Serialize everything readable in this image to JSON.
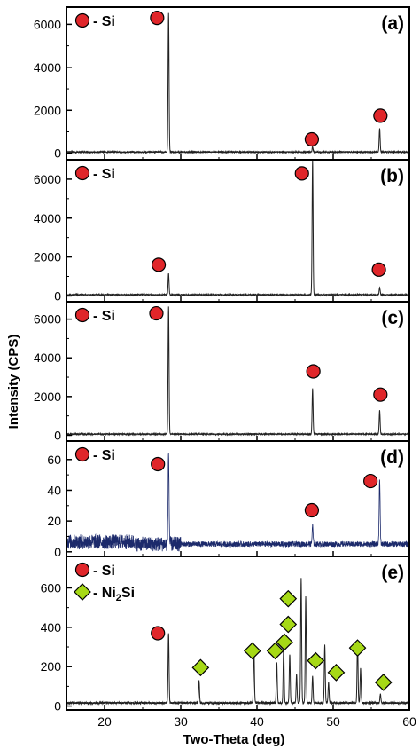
{
  "figure": {
    "ylabel": "Intensity (CPS)",
    "xlabel": "Two-Theta (deg)",
    "x_ticks": [
      "20",
      "30",
      "40",
      "50",
      "60"
    ],
    "xlim": [
      15,
      60
    ]
  },
  "chart_data": [
    {
      "type": "line",
      "panel_label": "(a)",
      "ylim": [
        -300,
        6800
      ],
      "y_ticks": [
        0,
        2000,
        4000,
        6000
      ],
      "legend": [
        {
          "marker": "circle",
          "color": "#e0262a",
          "label": "- Si"
        }
      ],
      "baseline": 60,
      "peaks": [
        {
          "x": 28.4,
          "y": 6550
        },
        {
          "x": 47.3,
          "y": 300
        },
        {
          "x": 56.1,
          "y": 1150
        }
      ],
      "markers": [
        {
          "type": "circle",
          "x": 26.9,
          "y": 6300
        },
        {
          "type": "circle",
          "x": 47.2,
          "y": 650
        },
        {
          "type": "circle",
          "x": 56.2,
          "y": 1750
        }
      ]
    },
    {
      "type": "line",
      "panel_label": "(b)",
      "ylim": [
        -300,
        7000
      ],
      "y_ticks": [
        0,
        2000,
        4000,
        6000
      ],
      "legend": [
        {
          "marker": "circle",
          "color": "#e0262a",
          "label": "- Si"
        }
      ],
      "baseline": 60,
      "peaks": [
        {
          "x": 28.4,
          "y": 1150
        },
        {
          "x": 47.3,
          "y": 7000
        },
        {
          "x": 56.1,
          "y": 450
        }
      ],
      "markers": [
        {
          "type": "circle",
          "x": 27.1,
          "y": 1600
        },
        {
          "type": "circle",
          "x": 45.9,
          "y": 6300
        },
        {
          "type": "circle",
          "x": 56.0,
          "y": 1350
        }
      ]
    },
    {
      "type": "line",
      "panel_label": "(c)",
      "ylim": [
        -300,
        6900
      ],
      "y_ticks": [
        0,
        2000,
        4000,
        6000
      ],
      "legend": [
        {
          "marker": "circle",
          "color": "#e0262a",
          "label": "- Si"
        }
      ],
      "baseline": 60,
      "peaks": [
        {
          "x": 28.4,
          "y": 6650
        },
        {
          "x": 47.3,
          "y": 2400
        },
        {
          "x": 56.1,
          "y": 1300
        }
      ],
      "markers": [
        {
          "type": "circle",
          "x": 26.8,
          "y": 6300
        },
        {
          "type": "circle",
          "x": 47.4,
          "y": 3300
        },
        {
          "type": "circle",
          "x": 56.2,
          "y": 2100
        }
      ]
    },
    {
      "type": "line",
      "panel_label": "(d)",
      "ylim": [
        -3,
        72
      ],
      "y_ticks": [
        0,
        20,
        40,
        60
      ],
      "legend": [
        {
          "marker": "circle",
          "color": "#e0262a",
          "label": "- Si"
        }
      ],
      "baseline": 5,
      "peaks": [
        {
          "x": 28.4,
          "y": 64
        },
        {
          "x": 47.3,
          "y": 17
        },
        {
          "x": 56.1,
          "y": 48
        }
      ],
      "markers": [
        {
          "type": "circle",
          "x": 27.0,
          "y": 57
        },
        {
          "type": "circle",
          "x": 47.2,
          "y": 27
        },
        {
          "type": "circle",
          "x": 54.9,
          "y": 46
        }
      ]
    },
    {
      "type": "line",
      "panel_label": "(e)",
      "ylim": [
        -20,
        760
      ],
      "y_ticks": [
        0,
        200,
        400,
        600
      ],
      "legend": [
        {
          "marker": "circle",
          "color": "#e0262a",
          "label": "- Si"
        },
        {
          "marker": "diamond",
          "color": "#a6d916",
          "label": "- Ni",
          "sub": "2",
          "suffix": "Si"
        }
      ],
      "baseline": 15,
      "peaks": [
        {
          "x": 28.4,
          "y": 370
        },
        {
          "x": 32.4,
          "y": 130
        },
        {
          "x": 39.6,
          "y": 300
        },
        {
          "x": 42.6,
          "y": 220
        },
        {
          "x": 43.5,
          "y": 310
        },
        {
          "x": 44.3,
          "y": 260
        },
        {
          "x": 45.2,
          "y": 160
        },
        {
          "x": 45.8,
          "y": 650
        },
        {
          "x": 46.4,
          "y": 560
        },
        {
          "x": 47.3,
          "y": 150
        },
        {
          "x": 48.9,
          "y": 310
        },
        {
          "x": 49.4,
          "y": 120
        },
        {
          "x": 53.2,
          "y": 330
        },
        {
          "x": 53.6,
          "y": 190
        },
        {
          "x": 56.2,
          "y": 60
        }
      ],
      "markers": [
        {
          "type": "circle",
          "x": 27.0,
          "y": 370
        },
        {
          "type": "diamond",
          "x": 32.6,
          "y": 195
        },
        {
          "type": "diamond",
          "x": 39.4,
          "y": 280
        },
        {
          "type": "diamond",
          "x": 42.4,
          "y": 280
        },
        {
          "type": "diamond",
          "x": 43.6,
          "y": 325
        },
        {
          "type": "diamond",
          "x": 44.1,
          "y": 415
        },
        {
          "type": "diamond",
          "x": 44.1,
          "y": 545
        },
        {
          "type": "diamond",
          "x": 47.7,
          "y": 230
        },
        {
          "type": "diamond",
          "x": 50.4,
          "y": 170
        },
        {
          "type": "diamond",
          "x": 53.2,
          "y": 295
        },
        {
          "type": "diamond",
          "x": 56.6,
          "y": 120
        }
      ]
    }
  ]
}
